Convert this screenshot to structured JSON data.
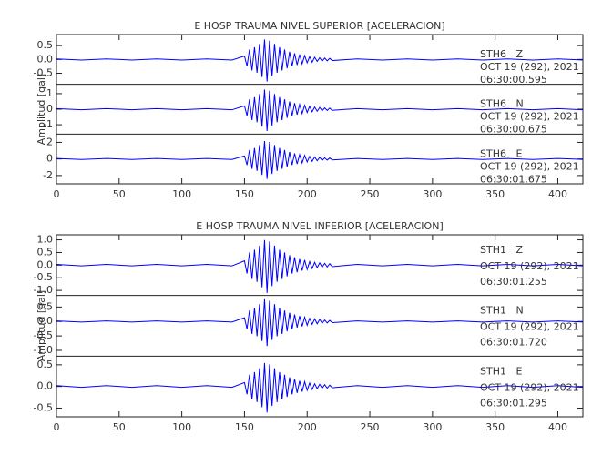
{
  "chart_data": [
    {
      "type": "line",
      "title": "E HOSP TRAUMA NIVEL SUPERIOR [ACELERACION]",
      "y_label": "Amplitud [gal]",
      "color": "#0000ff",
      "xlim": [
        0,
        420
      ],
      "xticks": [
        0,
        50,
        100,
        150,
        200,
        250,
        300,
        350,
        400
      ],
      "x": [
        0,
        20,
        40,
        60,
        80,
        100,
        120,
        140,
        150,
        152,
        154,
        156,
        158,
        160,
        162,
        164,
        166,
        168,
        170,
        172,
        174,
        176,
        178,
        180,
        182,
        184,
        186,
        188,
        190,
        192,
        194,
        196,
        198,
        200,
        202,
        204,
        206,
        208,
        210,
        212,
        214,
        216,
        218,
        220,
        240,
        260,
        280,
        300,
        320,
        340,
        360,
        380,
        400,
        420
      ],
      "panels": [
        {
          "station": "STH6   Z",
          "date": "OCT 19 (292), 2021",
          "time": "06:30:00.595",
          "ylim": [
            -0.9,
            0.9
          ],
          "yticks": [
            -0.5,
            {
              "value": 0,
              "label": "0.0"
            },
            0.5
          ],
          "values": [
            0.02,
            -0.02,
            0.02,
            -0.02,
            0.02,
            -0.02,
            0.02,
            -0.02,
            0.12,
            -0.24,
            0.36,
            -0.4,
            0.44,
            -0.48,
            0.56,
            -0.64,
            0.72,
            -0.8,
            0.68,
            -0.6,
            0.56,
            -0.48,
            0.44,
            -0.4,
            0.36,
            -0.32,
            0.28,
            -0.24,
            0.22,
            -0.2,
            0.18,
            -0.16,
            0.14,
            -0.12,
            0.1,
            -0.1,
            0.08,
            -0.07,
            0.06,
            -0.06,
            0.05,
            -0.05,
            0.04,
            -0.04,
            0.02,
            -0.02,
            0.02,
            -0.02,
            0.02,
            -0.02,
            0.02,
            -0.02,
            0.02,
            -0.02
          ]
        },
        {
          "station": "STH6   N",
          "date": "OCT 19 (292), 2021",
          "time": "06:30:00.675",
          "ylim": [
            -1.6,
            1.6
          ],
          "yticks": [
            -1,
            0,
            1
          ],
          "values": [
            0.04,
            -0.04,
            0.04,
            -0.04,
            0.04,
            -0.04,
            0.04,
            -0.04,
            0.21,
            -0.42,
            0.63,
            -0.7,
            0.77,
            -0.84,
            0.98,
            -1.12,
            1.26,
            -1.4,
            1.19,
            -1.05,
            0.98,
            -0.84,
            0.77,
            -0.7,
            0.63,
            -0.56,
            0.49,
            -0.42,
            0.39,
            -0.35,
            0.31,
            -0.28,
            0.25,
            -0.21,
            0.18,
            -0.17,
            0.14,
            -0.13,
            0.11,
            -0.1,
            0.08,
            -0.08,
            0.07,
            -0.07,
            0.04,
            -0.04,
            0.04,
            -0.04,
            0.04,
            -0.04,
            0.04,
            -0.04,
            0.04,
            -0.04
          ]
        },
        {
          "station": "STH6   E",
          "date": "OCT 19 (292), 2021",
          "time": "06:30:01.675",
          "ylim": [
            -3,
            3
          ],
          "yticks": [
            -2,
            0,
            2
          ],
          "values": [
            0.06,
            -0.06,
            0.06,
            -0.06,
            0.06,
            -0.06,
            0.06,
            -0.06,
            0.36,
            -0.72,
            1.08,
            -1.2,
            1.32,
            -1.44,
            1.68,
            -1.92,
            2.16,
            -2.4,
            2.04,
            -1.8,
            1.68,
            -1.44,
            1.32,
            -1.2,
            1.08,
            -0.96,
            0.84,
            -0.72,
            0.67,
            -0.6,
            0.53,
            -0.48,
            0.43,
            -0.36,
            0.31,
            -0.29,
            0.24,
            -0.22,
            0.19,
            -0.17,
            0.14,
            -0.14,
            0.12,
            -0.12,
            0.06,
            -0.06,
            0.06,
            -0.06,
            0.06,
            -0.06,
            0.06,
            -0.06,
            0.06,
            -0.06
          ]
        }
      ]
    },
    {
      "type": "line",
      "title": "E HOSP TRAUMA NIVEL INFERIOR [ACELERACION]",
      "y_label": "Amplitud [gal]",
      "color": "#0000ff",
      "xlim": [
        0,
        420
      ],
      "xticks": [
        0,
        50,
        100,
        150,
        200,
        250,
        300,
        350,
        400
      ],
      "x": [
        0,
        20,
        40,
        60,
        80,
        100,
        120,
        140,
        150,
        152,
        154,
        156,
        158,
        160,
        162,
        164,
        166,
        168,
        170,
        172,
        174,
        176,
        178,
        180,
        182,
        184,
        186,
        188,
        190,
        192,
        194,
        196,
        198,
        200,
        202,
        204,
        206,
        208,
        210,
        212,
        214,
        216,
        218,
        220,
        240,
        260,
        280,
        300,
        320,
        340,
        360,
        380,
        400,
        420
      ],
      "panels": [
        {
          "station": "STH1   Z",
          "date": "OCT 19 (292), 2021",
          "time": "06:30:01.255",
          "ylim": [
            -1.2,
            1.2
          ],
          "yticks": [
            {
              "value": -1,
              "label": "-1.0"
            },
            -0.5,
            {
              "value": 0,
              "label": "0.0"
            },
            0.5,
            {
              "value": 1,
              "label": "1.0"
            }
          ],
          "values": [
            0.03,
            -0.03,
            0.03,
            -0.03,
            0.03,
            -0.03,
            0.03,
            -0.03,
            0.17,
            -0.33,
            0.5,
            -0.55,
            0.61,
            -0.66,
            0.77,
            -0.88,
            0.99,
            -1.1,
            0.94,
            -0.83,
            0.77,
            -0.66,
            0.61,
            -0.55,
            0.5,
            -0.44,
            0.39,
            -0.33,
            0.31,
            -0.28,
            0.24,
            -0.22,
            0.2,
            -0.17,
            0.14,
            -0.13,
            0.11,
            -0.1,
            0.09,
            -0.08,
            0.07,
            -0.07,
            0.06,
            -0.06,
            0.03,
            -0.03,
            0.03,
            -0.03,
            0.03,
            -0.03,
            0.03,
            -0.03,
            0.03,
            -0.03
          ]
        },
        {
          "station": "STH1   N",
          "date": "OCT 19 (292), 2021",
          "time": "06:30:01.720",
          "ylim": [
            -1.2,
            0.9
          ],
          "yticks": [
            {
              "value": -1,
              "label": "-1.0"
            },
            -0.5,
            {
              "value": 0,
              "label": "0.0"
            },
            0.5
          ],
          "values": [
            0.02,
            -0.02,
            0.02,
            -0.02,
            0.02,
            -0.02,
            0.02,
            -0.02,
            0.13,
            -0.26,
            0.38,
            -0.43,
            0.47,
            -0.51,
            0.6,
            -0.68,
            0.77,
            -0.85,
            0.72,
            -0.64,
            0.6,
            -0.51,
            0.47,
            -0.43,
            0.38,
            -0.34,
            0.3,
            -0.26,
            0.24,
            -0.21,
            0.19,
            -0.17,
            0.15,
            -0.13,
            0.11,
            -0.1,
            0.09,
            -0.08,
            0.07,
            -0.06,
            0.05,
            -0.05,
            0.04,
            -0.04,
            0.02,
            -0.02,
            0.02,
            -0.02,
            0.02,
            -0.02,
            0.02,
            -0.02,
            0.02,
            -0.02
          ]
        },
        {
          "station": "STH1   E",
          "date": "OCT 19 (292), 2021",
          "time": "06:30:01.295",
          "ylim": [
            -0.7,
            0.7
          ],
          "yticks": [
            -0.5,
            {
              "value": 0,
              "label": "0.0"
            },
            0.5
          ],
          "values": [
            0.02,
            -0.02,
            0.02,
            -0.02,
            0.02,
            -0.02,
            0.02,
            -0.02,
            0.09,
            -0.18,
            0.27,
            -0.3,
            0.33,
            -0.36,
            0.42,
            -0.48,
            0.54,
            -0.6,
            0.51,
            -0.45,
            0.42,
            -0.36,
            0.33,
            -0.3,
            0.27,
            -0.24,
            0.21,
            -0.18,
            0.17,
            -0.15,
            0.13,
            -0.12,
            0.11,
            -0.09,
            0.08,
            -0.07,
            0.06,
            -0.05,
            0.05,
            -0.04,
            0.04,
            -0.04,
            0.03,
            -0.03,
            0.02,
            -0.02,
            0.02,
            -0.02,
            0.02,
            -0.02,
            0.02,
            -0.02,
            0.02,
            -0.02
          ]
        }
      ]
    }
  ]
}
